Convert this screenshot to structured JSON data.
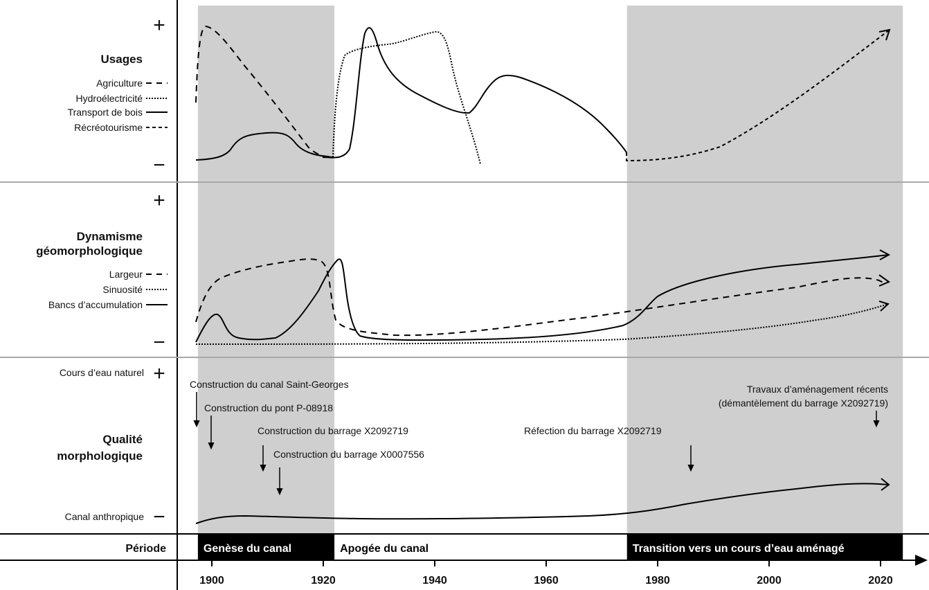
{
  "x_axis": {
    "ticks": [
      "1900",
      "1920",
      "1940",
      "1960",
      "1980",
      "2000",
      "2020"
    ]
  },
  "panels": {
    "usages": {
      "title": "Usages",
      "plus": "+",
      "minus": "−",
      "legend": [
        "Agriculture",
        "Hydroélectricité",
        "Transport de bois",
        "Récréotourisme"
      ]
    },
    "dynamisme": {
      "title_line1": "Dynamisme",
      "title_line2": "géomorphologique",
      "plus": "+",
      "minus": "−",
      "legend": [
        "Largeur",
        "Sinuosité",
        "Bancs d’accumulation"
      ]
    },
    "qualite": {
      "title_line1": "Qualité",
      "title_line2": "morphologique",
      "top_label": "Cours d’eau naturel",
      "bottom_label": "Canal anthropique",
      "plus": "+",
      "minus": "−"
    }
  },
  "events": [
    {
      "year": 1897.8,
      "text": "Construction du canal Saint-Georges"
    },
    {
      "year": 1900,
      "text": "Construction du pont P-08918"
    },
    {
      "year": 1909.7,
      "text": "Construction du barrage X2092719"
    },
    {
      "year": 1912,
      "text": "Construction du barrage X0007556"
    },
    {
      "year": 1986,
      "text": "Réfection du barrage X2092719"
    },
    {
      "year": 2018.5,
      "text_line1": "Travaux d’aménagement récents",
      "text_line2": "(démantèlement du barrage X2092719)"
    }
  ],
  "periods": {
    "row_label": "Période",
    "items": [
      {
        "label": "Genèse du canal",
        "start": 1897.5,
        "end": 1922,
        "shaded": true
      },
      {
        "label": "Apogée du canal",
        "start": 1922,
        "end": 1974.5,
        "shaded": false
      },
      {
        "label": "Transition vers un cours d’eau aménagé",
        "start": 1974.5,
        "end": 2024,
        "shaded": true
      }
    ]
  }
}
